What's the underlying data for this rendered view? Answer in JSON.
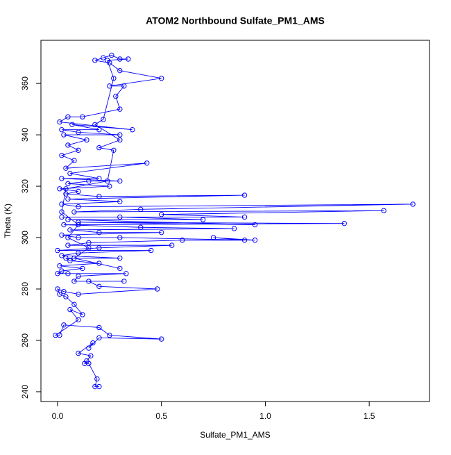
{
  "chart_data": {
    "type": "line",
    "markers": true,
    "title": "ATOM2 Northbound Sulfate_PM1_AMS",
    "x_label": "Sulfate_PM1_AMS",
    "y_label": "Theta (K)",
    "color": "#0000ff",
    "x": [
      0.2,
      0.18,
      0.19,
      0.15,
      0.13,
      0.14,
      0.16,
      0.1,
      0.17,
      0.15,
      0.2,
      0.5,
      0.25,
      0.2,
      0.03,
      0.01,
      -0.01,
      0.1,
      0.06,
      0.12,
      0.08,
      0.04,
      0.01,
      0,
      0.03,
      0.1,
      0.48,
      0.2,
      0.15,
      0.32,
      0.08,
      0.1,
      0.33,
      0.05,
      0,
      0.02,
      0.12,
      0.01,
      0.2,
      0.06,
      0.04,
      0.3,
      0.02,
      0.1,
      0.45,
      0,
      0.2,
      0.55,
      0.05,
      0.15,
      0.6,
      0.9,
      0.75,
      0.95,
      0.3,
      0.1,
      0.02,
      0.5,
      0.2,
      0.06,
      0.85,
      0.4,
      0.03,
      1.38,
      0.1,
      0.95,
      0.05,
      0.7,
      0.3,
      0.02,
      0.9,
      0.5,
      1.57,
      0.08,
      0.4,
      1.71,
      0.1,
      0.02,
      0.3,
      0.05,
      0.9,
      0.2,
      0.04,
      0.1,
      0.01,
      0.25,
      0.05,
      0.15,
      0.3,
      0.02,
      0.2,
      0.06,
      0.43,
      0.04,
      0.08,
      0.02,
      0.1,
      0.05,
      0.14,
      0.03,
      0.3,
      0.1,
      0.02,
      0.2,
      0.07,
      0.36,
      0.01,
      0.05,
      0.12,
      0.3,
      0.28,
      0.32,
      0.25,
      0.5,
      0.3,
      0.25,
      0.18,
      0.22,
      0.26,
      0.3,
      0.34,
      0.24,
      0.27,
      0.22,
      0.18,
      0.3,
      0.2,
      0.27,
      0.24,
      0.04,
      0.02,
      0.1,
      0.05,
      0.15,
      0.08,
      0.3
    ],
    "values": [
      242,
      242,
      245,
      251,
      251,
      252,
      254,
      255,
      259,
      257,
      261,
      260.5,
      262,
      265,
      266,
      262,
      262,
      268,
      272,
      270,
      274,
      277,
      278,
      280,
      279,
      278,
      280,
      281,
      283,
      283,
      283,
      285,
      286,
      286,
      286,
      287,
      288,
      289,
      290,
      291,
      292,
      292,
      293,
      294,
      295,
      295,
      296,
      297,
      297,
      298,
      299,
      299,
      300,
      299,
      300,
      300,
      301,
      302,
      302,
      303,
      303.5,
      304,
      305,
      305.5,
      306,
      305,
      307,
      307,
      308,
      308,
      308,
      309,
      310.5,
      310,
      311,
      313,
      312,
      313,
      314,
      315,
      316.5,
      316,
      317,
      318,
      319,
      320,
      321,
      322,
      322,
      323,
      323,
      325,
      329,
      327,
      330,
      332,
      334,
      336,
      338,
      340,
      340,
      341,
      342,
      342,
      344,
      342,
      345,
      347,
      347,
      350,
      355,
      359,
      359,
      362,
      365,
      368,
      369,
      370,
      371,
      369.5,
      369.5,
      369,
      362,
      346,
      344,
      338,
      335,
      334,
      322,
      319,
      310,
      305,
      300,
      296,
      292,
      288
    ],
    "xlim": [
      -0.08,
      1.79
    ],
    "ylim": [
      236.2,
      376.8
    ],
    "xticks": [
      {
        "value": 0,
        "label": "0.0"
      },
      0.5,
      {
        "value": 1,
        "label": "1.0"
      },
      1.5
    ],
    "yticks": [
      240,
      260,
      280,
      300,
      320,
      340,
      360
    ]
  }
}
